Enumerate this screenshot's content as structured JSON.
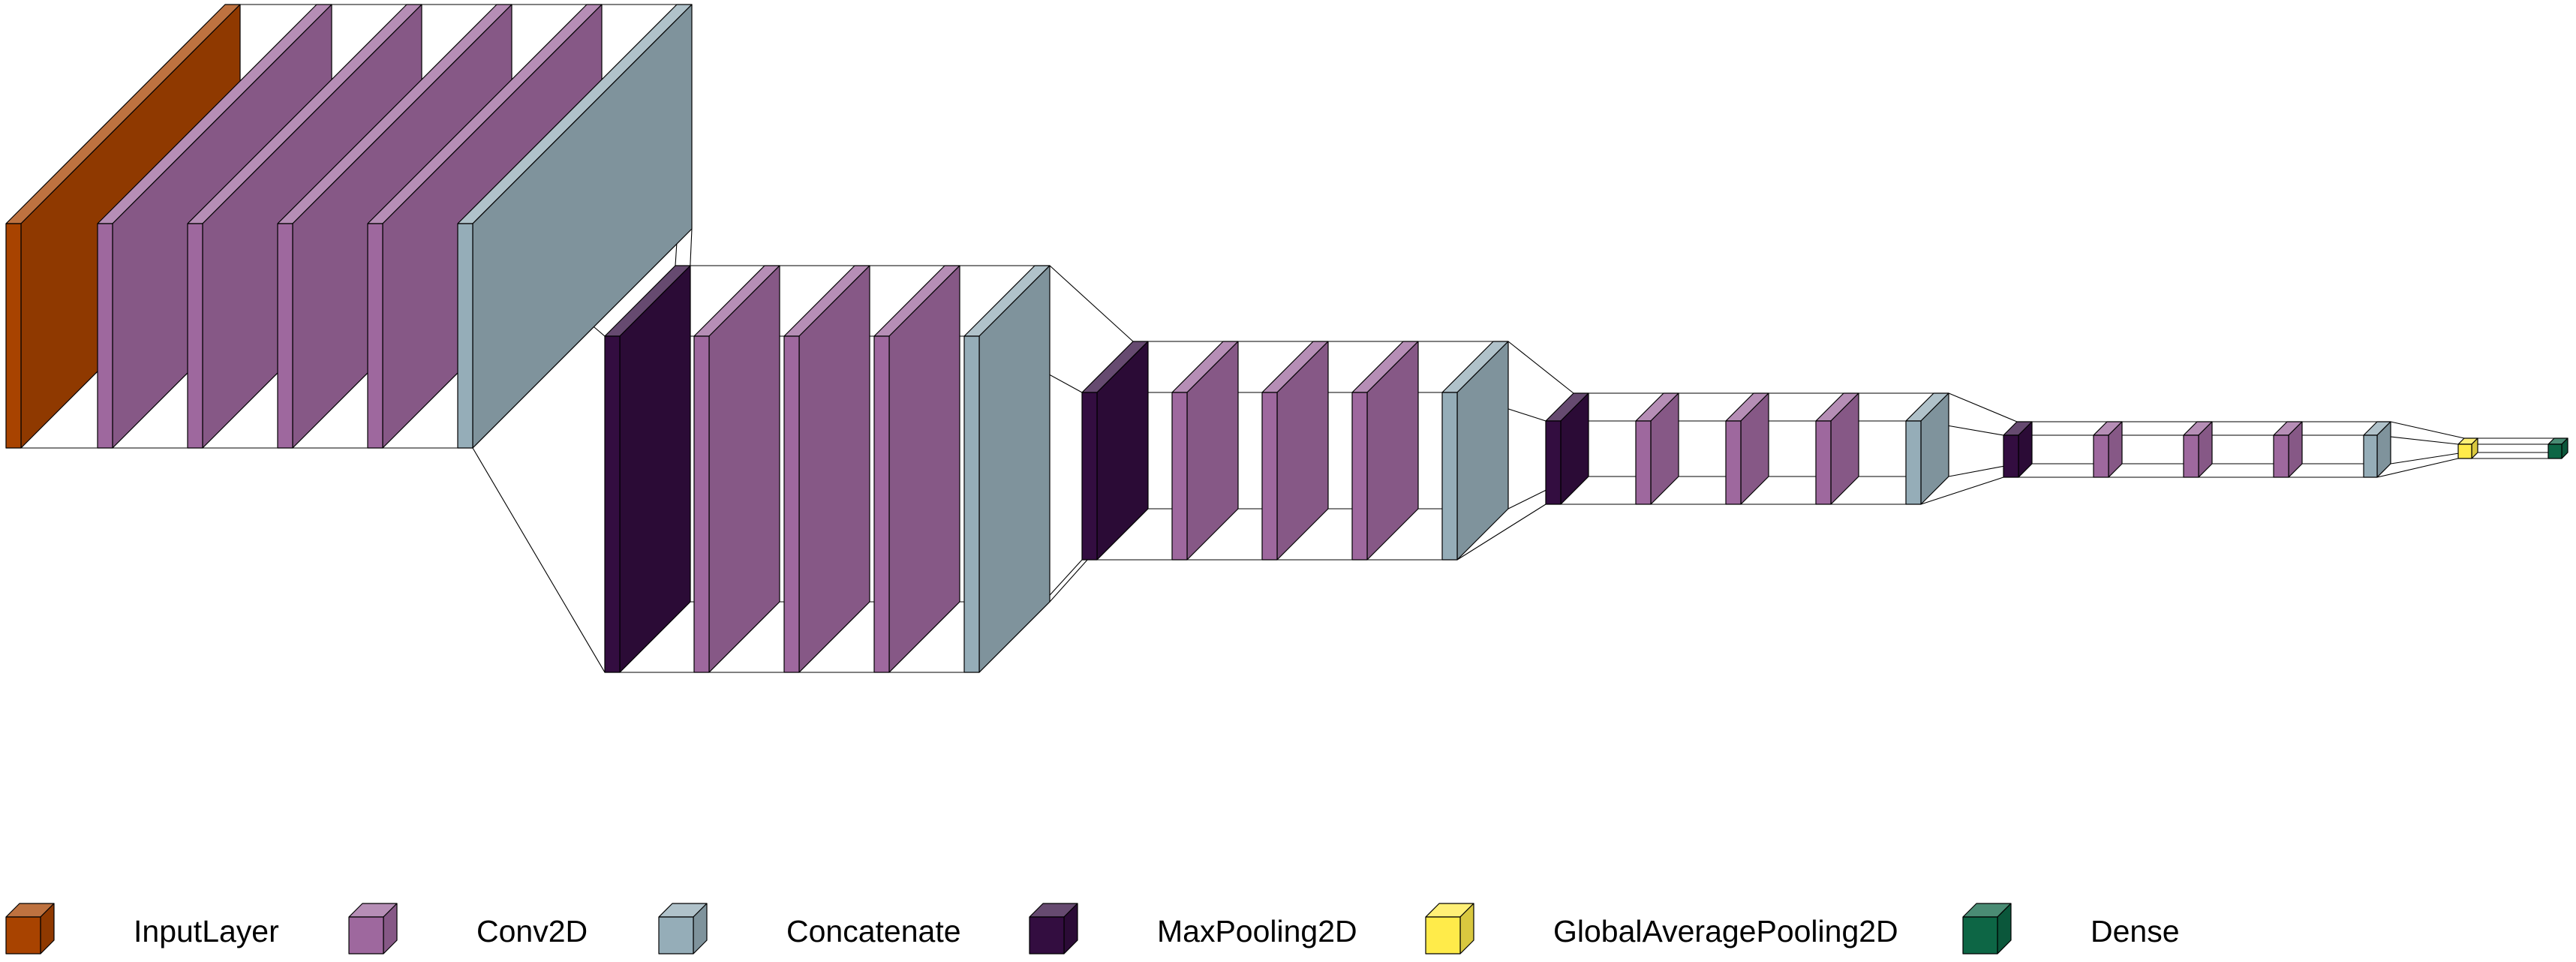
{
  "diagram": {
    "type": "neural-network-layer-stack",
    "layer_types": [
      {
        "key": "InputLayer",
        "label": "InputLayer",
        "color": "#a84300",
        "icon": "input-layer-cube"
      },
      {
        "key": "Conv2D",
        "label": "Conv2D",
        "color": "#9e689e",
        "icon": "conv2d-cube"
      },
      {
        "key": "Concatenate",
        "label": "Concatenate",
        "color": "#95adb8",
        "icon": "concatenate-cube"
      },
      {
        "key": "MaxPooling2D",
        "label": "MaxPooling2D",
        "color": "#330d40",
        "icon": "maxpooling2d-cube"
      },
      {
        "key": "GlobalAveragePooling2D",
        "label": "GlobalAveragePooling2D",
        "color": "#ffeb4a",
        "icon": "global-average-pooling2d-cube"
      },
      {
        "key": "Dense",
        "label": "Dense",
        "color": "#0d6645",
        "icon": "dense-cube"
      }
    ],
    "layers": [
      "InputLayer",
      "Conv2D",
      "Conv2D",
      "Conv2D",
      "Conv2D",
      "Concatenate",
      "MaxPooling2D",
      "Conv2D",
      "Conv2D",
      "Conv2D",
      "Concatenate",
      "MaxPooling2D",
      "Conv2D",
      "Conv2D",
      "Conv2D",
      "Concatenate",
      "MaxPooling2D",
      "Conv2D",
      "Conv2D",
      "Conv2D",
      "Concatenate",
      "MaxPooling2D",
      "Conv2D",
      "Conv2D",
      "Conv2D",
      "Concatenate",
      "GlobalAveragePooling2D",
      "Dense"
    ]
  }
}
